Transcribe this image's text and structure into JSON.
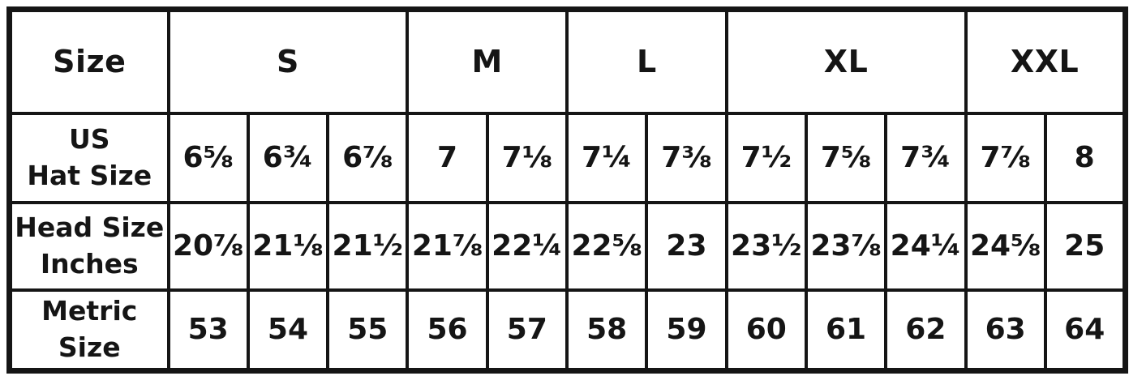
{
  "colors": {
    "border": "#151515",
    "background": "#ffffff",
    "text": "#151515"
  },
  "table": {
    "corner_label": "Size",
    "groups": [
      {
        "label": "S",
        "span": 3
      },
      {
        "label": "M",
        "span": 2
      },
      {
        "label": "L",
        "span": 2
      },
      {
        "label": "XL",
        "span": 3
      },
      {
        "label": "XXL",
        "span": 2
      }
    ],
    "rows": [
      {
        "label_line1": "US",
        "label_line2": "Hat Size",
        "values": [
          "6⅝",
          "6¾",
          "6⅞",
          "7",
          "7⅛",
          "7¼",
          "7⅜",
          "7½",
          "7⅝",
          "7¾",
          "7⅞",
          "8"
        ]
      },
      {
        "label_line1": "Head Size",
        "label_line2": "Inches",
        "values": [
          "20⅞",
          "21⅛",
          "21½",
          "21⅞",
          "22¼",
          "22⅝",
          "23",
          "23½",
          "23⅞",
          "24¼",
          "24⅝",
          "25"
        ]
      },
      {
        "label_line1": "Metric",
        "label_line2": "Size",
        "values": [
          "53",
          "54",
          "55",
          "56",
          "57",
          "58",
          "59",
          "60",
          "61",
          "62",
          "63",
          "64"
        ]
      }
    ]
  }
}
